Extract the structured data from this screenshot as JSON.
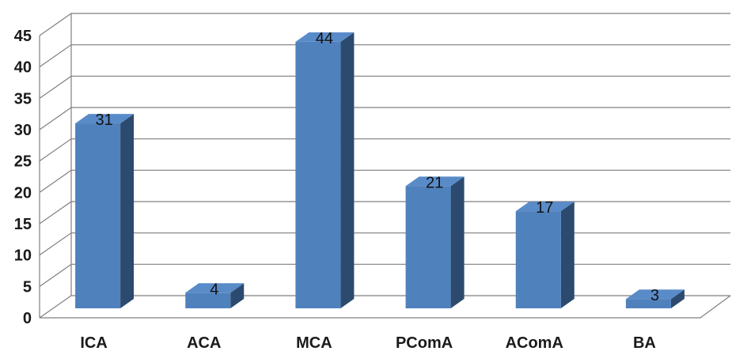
{
  "chart_data": {
    "type": "bar",
    "title": "",
    "xlabel": "",
    "ylabel": "",
    "categories": [
      "ICA",
      "ACA",
      "MCA",
      "PComA",
      "AComA",
      "BA"
    ],
    "values": [
      31,
      4,
      44,
      21,
      17,
      3
    ],
    "data_labels": [
      "31",
      "4",
      "44",
      "21",
      "17",
      "3"
    ],
    "ylim": [
      0,
      45
    ],
    "yticks": [
      0,
      5,
      10,
      15,
      20,
      25,
      30,
      35,
      40,
      45
    ],
    "ytick_labels": [
      "0",
      "5",
      "10",
      "15",
      "20",
      "25",
      "30",
      "35",
      "40",
      "45"
    ],
    "grid": true,
    "legend": "none",
    "style": "3d-column",
    "colors": {
      "bar_front": "#4f81bd",
      "bar_side": "#2c4a6e",
      "bar_top": "#5a8bc9",
      "grid": "#7f7f7f",
      "text": "#1a1a1a"
    }
  }
}
